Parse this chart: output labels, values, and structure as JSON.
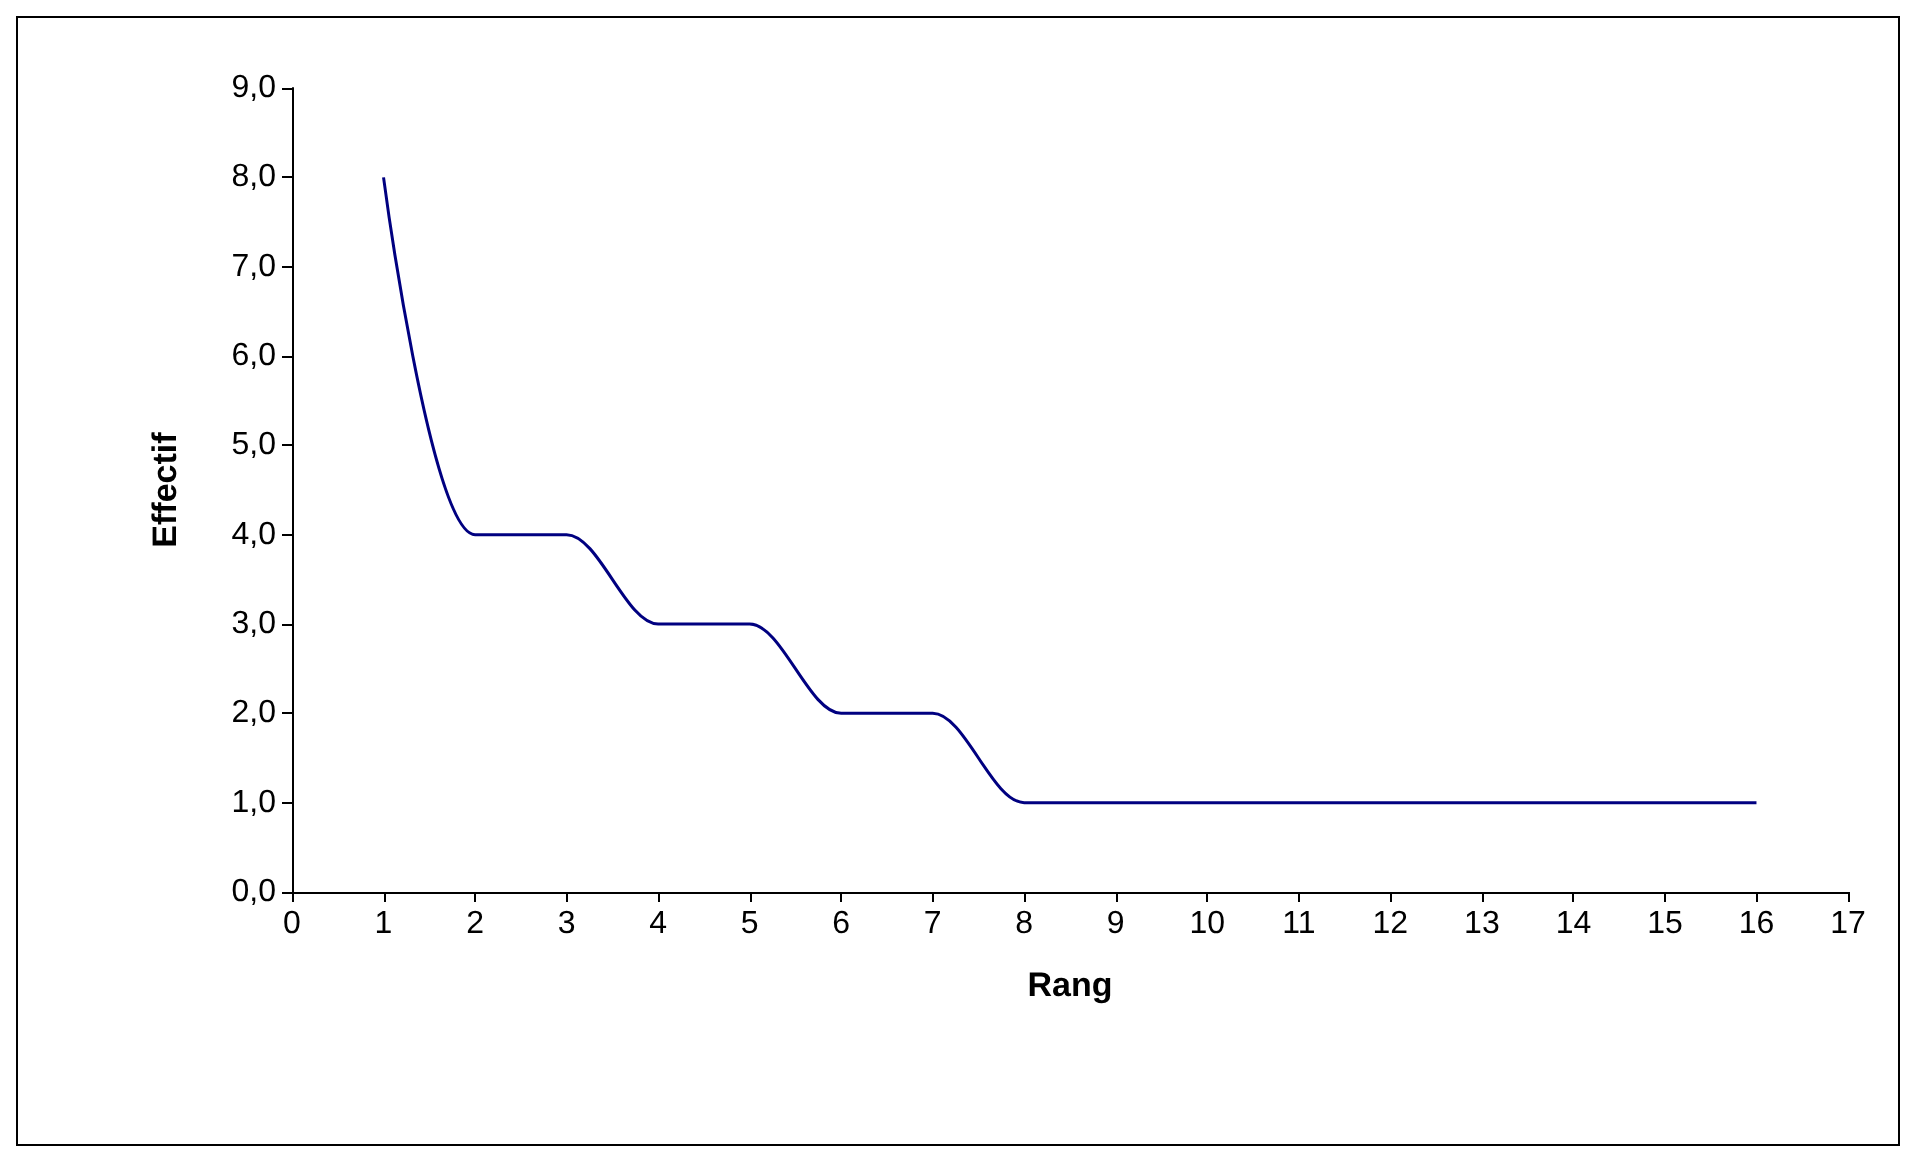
{
  "chart_data": {
    "type": "line",
    "xlabel": "Rang",
    "ylabel": "Effectif",
    "x": [
      1,
      2,
      3,
      4,
      5,
      6,
      7,
      8,
      9,
      10,
      11,
      12,
      13,
      14,
      15,
      16
    ],
    "series": [
      {
        "color": "#000080",
        "values": [
          8,
          4,
          4,
          3,
          3,
          2,
          2,
          1,
          1,
          1,
          1,
          1,
          1,
          1,
          1,
          1
        ]
      }
    ],
    "xlim": [
      0,
      17
    ],
    "xticks": [
      0,
      1,
      2,
      3,
      4,
      5,
      6,
      7,
      8,
      9,
      10,
      11,
      12,
      13,
      14,
      15,
      16,
      17
    ],
    "ylim": [
      0,
      9
    ],
    "yticks": [
      {
        "value": 0,
        "label": "0,0"
      },
      {
        "value": 1,
        "label": "1,0"
      },
      {
        "value": 2,
        "label": "2,0"
      },
      {
        "value": 3,
        "label": "3,0"
      },
      {
        "value": 4,
        "label": "4,0"
      },
      {
        "value": 5,
        "label": "5,0"
      },
      {
        "value": 6,
        "label": "6,0"
      },
      {
        "value": 7,
        "label": "7,0"
      },
      {
        "value": 8,
        "label": "8,0"
      },
      {
        "value": 9,
        "label": "9,0"
      }
    ],
    "marker": "none",
    "line_style": "solid"
  }
}
